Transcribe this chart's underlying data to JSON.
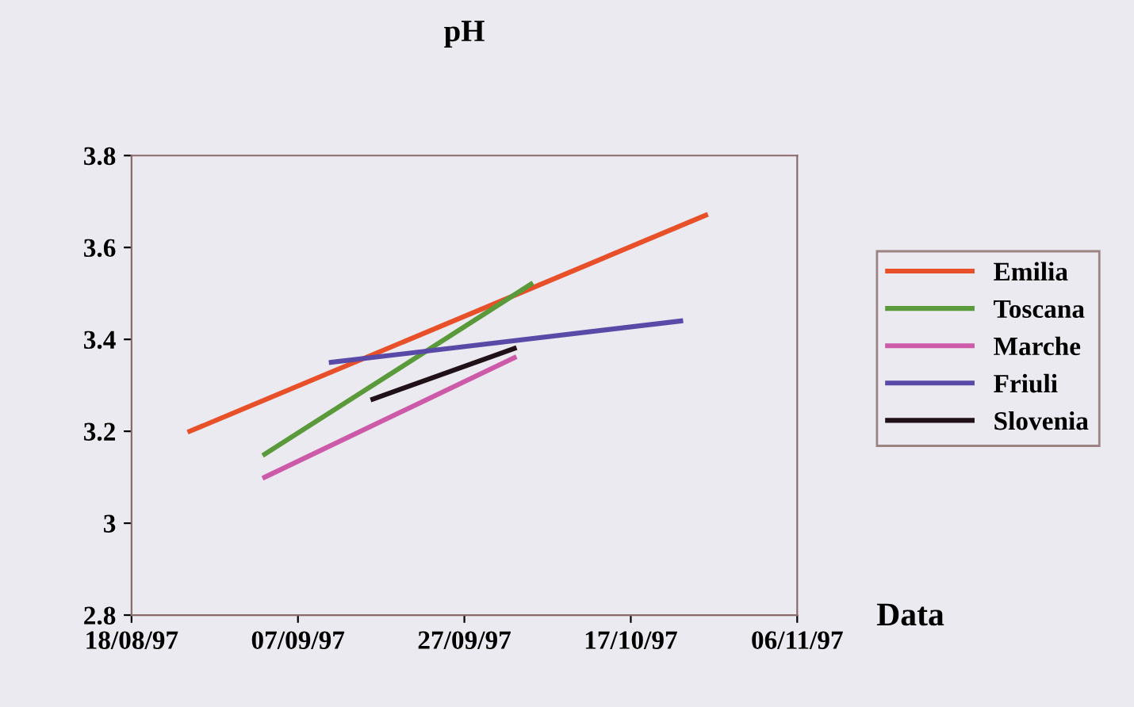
{
  "chart_data": {
    "type": "line",
    "title": "pH",
    "xlabel": "Data",
    "xlim": [
      "1997-08-18",
      "1997-11-06"
    ],
    "xticks": [
      {
        "value": "1997-08-18",
        "label": "18/08/97"
      },
      {
        "value": "1997-09-07",
        "label": "07/09/97"
      },
      {
        "value": "1997-09-27",
        "label": "27/09/97"
      },
      {
        "value": "1997-10-17",
        "label": "17/10/97"
      },
      {
        "value": "1997-11-06",
        "label": "06/11/97"
      }
    ],
    "ylim": [
      2.8,
      3.8
    ],
    "yticks": [
      2.8,
      3,
      3.2,
      3.4,
      3.6,
      3.8
    ],
    "grid": false,
    "legend": "right",
    "marker": "none",
    "line_style": "solid",
    "series": [
      {
        "name": "Emilia",
        "color": "#e8502a",
        "x": [
          "1997-08-25",
          "1997-10-26"
        ],
        "values": [
          3.2,
          3.67
        ]
      },
      {
        "name": "Toscana",
        "color": "#5a9a3a",
        "x": [
          "1997-09-03",
          "1997-10-05"
        ],
        "values": [
          3.15,
          3.52
        ]
      },
      {
        "name": "Marche",
        "color": "#cc5aa8",
        "x": [
          "1997-09-03",
          "1997-10-03"
        ],
        "values": [
          3.1,
          3.36
        ]
      },
      {
        "name": "Friuli",
        "color": "#5a4aa8",
        "x": [
          "1997-09-11",
          "1997-10-23"
        ],
        "values": [
          3.35,
          3.44
        ]
      },
      {
        "name": "Slovenia",
        "color": "#201018",
        "x": [
          "1997-09-16",
          "1997-10-03"
        ],
        "values": [
          3.27,
          3.38
        ]
      }
    ]
  }
}
